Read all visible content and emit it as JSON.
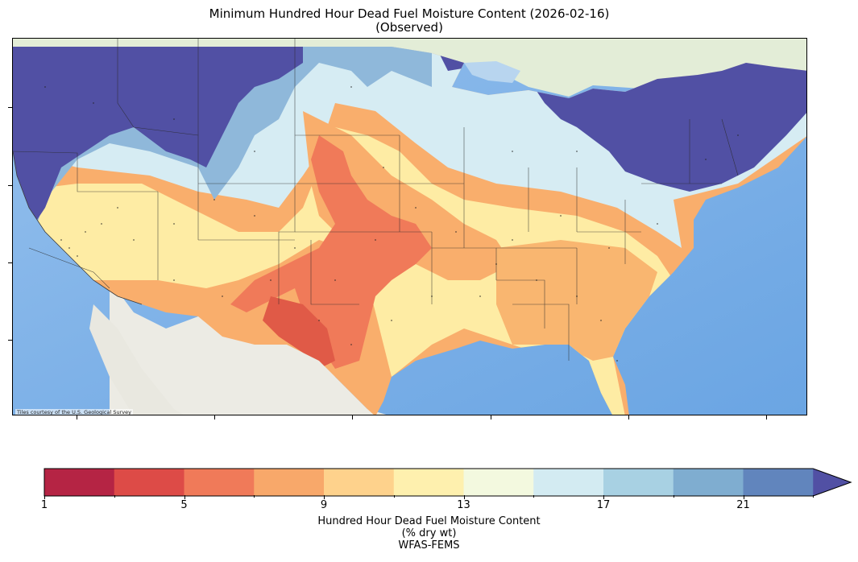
{
  "title": {
    "line1": "Minimum Hundred Hour Dead Fuel Moisture Content (2026-02-16)",
    "line2": "(Observed)"
  },
  "map": {
    "attribution": "Tiles courtesy of the U.S. Geological Survey",
    "colors": {
      "ocean": "#7fb3e8",
      "land_mexico": "#ece9e0",
      "land_canada": "#e4eed8",
      "great_lakes": "#b9d6f0",
      "state_border": "#333333"
    }
  },
  "colorbar": {
    "label_line1": "Hundred Hour Dead Fuel Moisture Content",
    "label_line2": "(% dry wt)",
    "label_line3": "WFAS-FEMS",
    "extend": "max",
    "ticks": [
      "1",
      "5",
      "9",
      "13",
      "17",
      "21"
    ],
    "bins": [
      {
        "from": 1,
        "to": 3,
        "color": "#b52444"
      },
      {
        "from": 3,
        "to": 5,
        "color": "#dd4b47"
      },
      {
        "from": 5,
        "to": 7,
        "color": "#f07a59"
      },
      {
        "from": 7,
        "to": 9,
        "color": "#f8a86a"
      },
      {
        "from": 9,
        "to": 11,
        "color": "#fed28c"
      },
      {
        "from": 11,
        "to": 13,
        "color": "#fef0ae"
      },
      {
        "from": 13,
        "to": 15,
        "color": "#f3f9df"
      },
      {
        "from": 15,
        "to": 17,
        "color": "#d3ebf2"
      },
      {
        "from": 17,
        "to": 19,
        "color": "#a8d1e3"
      },
      {
        "from": 19,
        "to": 21,
        "color": "#7fadd0"
      },
      {
        "from": 21,
        "to": 23,
        "color": "#6185bd"
      },
      {
        "from": 23,
        "to": null,
        "color": "#5150a4"
      }
    ]
  }
}
